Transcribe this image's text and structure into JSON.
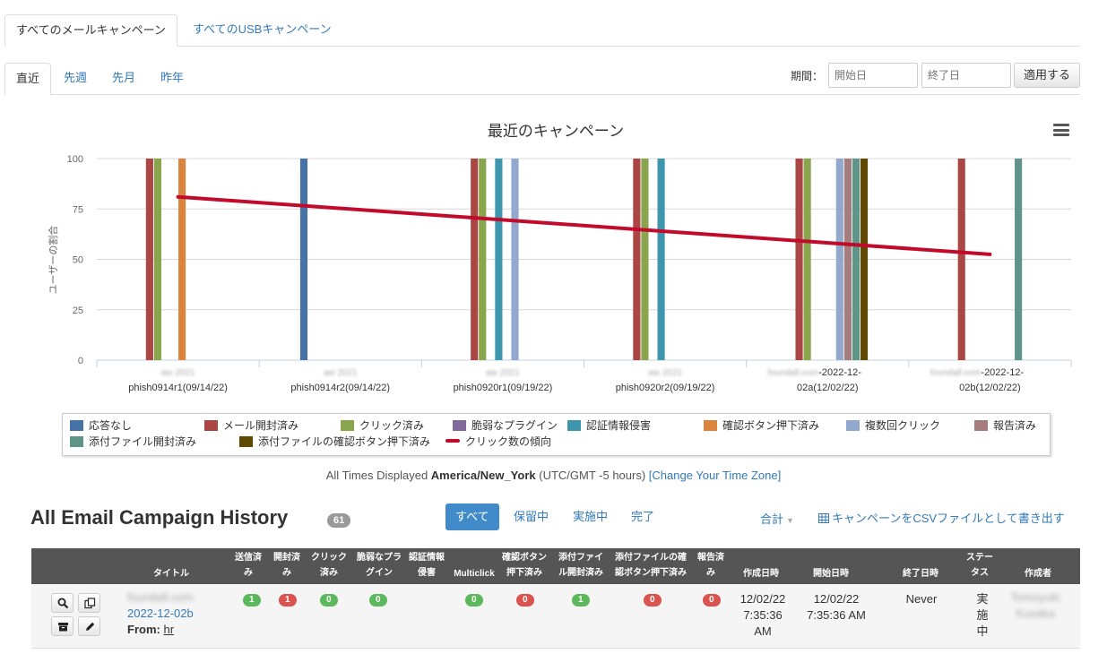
{
  "top_tabs": [
    "すべてのメールキャンペーン",
    "すべてのUSBキャンペーン"
  ],
  "period_tabs": [
    "直近",
    "先週",
    "先月",
    "昨年"
  ],
  "period": {
    "label": "期間：",
    "start_placeholder": "開始日",
    "end_placeholder": "終了日",
    "apply_label": "適用する"
  },
  "chart_data": {
    "type": "bar",
    "title": "最近のキャンペーン",
    "ylabel": "ユーザーの割合",
    "xlabel": "",
    "ylim": [
      0,
      100
    ],
    "yticks": [
      0,
      25,
      50,
      75,
      100
    ],
    "grid": true,
    "legend_position": "bottom",
    "categories": [
      {
        "blur": "aw 2021",
        "label": "phish0914r1(09/14/22)"
      },
      {
        "blur": "aw 2021",
        "label": "phish0914r2(09/14/22)"
      },
      {
        "blur": "aw 2021",
        "label": "phish0920r1(09/19/22)"
      },
      {
        "blur": "aw 2021",
        "label": "phish0920r2(09/19/22)"
      },
      {
        "blur": "foundall.com",
        "label": "-2022-12-",
        "label2": "02a(12/02/22)"
      },
      {
        "blur": "foundall.com",
        "label": "-2022-12-",
        "label2": "02b(12/02/22)"
      }
    ],
    "series": [
      {
        "name": "応答なし",
        "color": "#4572a7",
        "values": [
          0,
          100,
          0,
          0,
          0,
          0
        ]
      },
      {
        "name": "メール開封済み",
        "color": "#aa4643",
        "values": [
          100,
          0,
          100,
          100,
          100,
          100
        ]
      },
      {
        "name": "クリック済み",
        "color": "#89a54e",
        "values": [
          100,
          0,
          100,
          100,
          100,
          0
        ]
      },
      {
        "name": "脆弱なプラグイン",
        "color": "#80699b",
        "values": [
          0,
          0,
          0,
          0,
          0,
          0
        ]
      },
      {
        "name": "認証情報侵害",
        "color": "#3d96ae",
        "values": [
          0,
          0,
          100,
          100,
          0,
          0
        ]
      },
      {
        "name": "確認ボタン押下済み",
        "color": "#db843d",
        "values": [
          100,
          0,
          0,
          0,
          0,
          0
        ]
      },
      {
        "name": "複数回クリック",
        "color": "#92a8cd",
        "values": [
          0,
          0,
          100,
          0,
          100,
          0
        ]
      },
      {
        "name": "報告済み",
        "color": "#a47d7c",
        "values": [
          0,
          0,
          0,
          0,
          100,
          0
        ]
      },
      {
        "name": "添付ファイル開封済み",
        "color": "#5f9488",
        "values": [
          0,
          0,
          0,
          0,
          100,
          100
        ]
      },
      {
        "name": "添付ファイルの確認ボタン押下済み",
        "color": "#604a03",
        "values": [
          0,
          0,
          0,
          0,
          100,
          0
        ]
      }
    ],
    "trend": {
      "name": "クリック数の傾向",
      "color": "#c20a2a",
      "start": 81,
      "end": 52.5
    }
  },
  "tz_note": {
    "prefix": "All Times Displayed ",
    "zone": "America/New_York",
    "suffix": " (UTC/GMT -5 hours) ",
    "link": "[Change Your Time Zone]"
  },
  "history": {
    "title": "All Email Campaign History",
    "count": "61",
    "filters": [
      "すべて",
      "保留中",
      "実施中",
      "完了"
    ],
    "total_label": "合計",
    "csv_label": "キャンペーンをCSVファイルとして書き出す"
  },
  "table": {
    "headers": {
      "title": "タイトル",
      "sent": [
        "送信済",
        "み"
      ],
      "opened": [
        "開封済",
        "み"
      ],
      "clicked": [
        "クリック",
        "済み"
      ],
      "plugin": [
        "脆弱なプラ",
        "グイン"
      ],
      "cred": [
        "認証情報",
        "侵害"
      ],
      "multiclick": "Multiclick",
      "confirm": [
        "確認ボタン",
        "押下済み"
      ],
      "attach": [
        "添付ファイ",
        "ル開封済み"
      ],
      "attach_confirm": [
        "添付ファイルの確",
        "認ボタン押下済み"
      ],
      "reported": [
        "報告済",
        "み"
      ],
      "created": "作成日時",
      "started": "開始日時",
      "ended": "終了日時",
      "status": [
        "ステー",
        "タス"
      ],
      "author": "作成者"
    },
    "row": {
      "title_blur": "foundall.com",
      "title_suffix": "2022-12-02b",
      "from_label": "From:",
      "from_value": "hr",
      "sent": "1",
      "opened": "1",
      "clicked": "0",
      "plugin": "0",
      "multiclick": "0",
      "confirm": "0",
      "attach": "1",
      "attach_confirm": "0",
      "reported": "0",
      "created": [
        "12/02/22",
        "7:35:36",
        "AM"
      ],
      "started": [
        "12/02/22",
        "7:35:36 AM"
      ],
      "ended": "Never",
      "status": [
        "実",
        "施",
        "中"
      ],
      "author_blur": [
        "Tomoyuki",
        "Kusaka"
      ]
    }
  }
}
